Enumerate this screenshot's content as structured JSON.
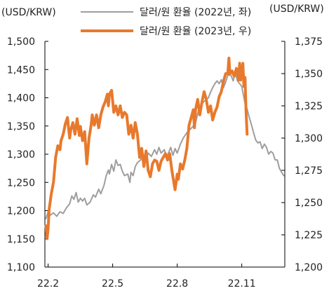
{
  "chart_data": {
    "type": "line",
    "y_unit_left": "(USD/KRW)",
    "y_unit_right": "(USD/KRW)",
    "yticks_left": [
      "1,500",
      "1,450",
      "1,400",
      "1,350",
      "1,300",
      "1,250",
      "1,200",
      "1,150",
      "1,100"
    ],
    "ylim_left": [
      1100,
      1500
    ],
    "yticks_right": [
      "1,375",
      "1,350",
      "1,325",
      "1,300",
      "1,275",
      "1,250",
      "1,225",
      "1,200"
    ],
    "ylim_right": [
      1200,
      1375
    ],
    "xticks": [
      "22.2",
      "22.5",
      "22.8",
      "22.11"
    ],
    "x_tick_months": [
      1,
      4,
      7,
      10
    ],
    "x_range_months": [
      0.85,
      12.0
    ],
    "grid": false,
    "legend_position": "top",
    "series": [
      {
        "name": "달러/원 환율 (2022년, 좌)",
        "axis": "left",
        "color": "#9e9e9e",
        "points": [
          [
            0.9,
            1186
          ],
          [
            1.0,
            1198
          ],
          [
            1.1,
            1192
          ],
          [
            1.25,
            1196
          ],
          [
            1.4,
            1190
          ],
          [
            1.55,
            1198
          ],
          [
            1.7,
            1195
          ],
          [
            1.85,
            1205
          ],
          [
            2.0,
            1212
          ],
          [
            2.1,
            1226
          ],
          [
            2.2,
            1220
          ],
          [
            2.3,
            1232
          ],
          [
            2.4,
            1215
          ],
          [
            2.5,
            1222
          ],
          [
            2.6,
            1217
          ],
          [
            2.7,
            1222
          ],
          [
            2.8,
            1210
          ],
          [
            2.95,
            1215
          ],
          [
            3.1,
            1228
          ],
          [
            3.2,
            1224
          ],
          [
            3.35,
            1238
          ],
          [
            3.45,
            1230
          ],
          [
            3.6,
            1245
          ],
          [
            3.7,
            1262
          ],
          [
            3.8,
            1272
          ],
          [
            3.85,
            1265
          ],
          [
            3.95,
            1282
          ],
          [
            4.05,
            1270
          ],
          [
            4.15,
            1290
          ],
          [
            4.25,
            1280
          ],
          [
            4.35,
            1282
          ],
          [
            4.45,
            1270
          ],
          [
            4.55,
            1262
          ],
          [
            4.7,
            1265
          ],
          [
            4.8,
            1250
          ],
          [
            4.85,
            1268
          ],
          [
            4.95,
            1262
          ],
          [
            5.05,
            1278
          ],
          [
            5.15,
            1285
          ],
          [
            5.3,
            1290
          ],
          [
            5.4,
            1300
          ],
          [
            5.55,
            1292
          ],
          [
            5.65,
            1302
          ],
          [
            5.8,
            1296
          ],
          [
            5.95,
            1308
          ],
          [
            6.05,
            1300
          ],
          [
            6.15,
            1312
          ],
          [
            6.25,
            1302
          ],
          [
            6.4,
            1308
          ],
          [
            6.5,
            1295
          ],
          [
            6.6,
            1303
          ],
          [
            6.7,
            1312
          ],
          [
            6.8,
            1298
          ],
          [
            6.9,
            1310
          ],
          [
            7.0,
            1302
          ],
          [
            7.15,
            1318
          ],
          [
            7.3,
            1330
          ],
          [
            7.45,
            1338
          ],
          [
            7.55,
            1342
          ],
          [
            7.7,
            1348
          ],
          [
            7.85,
            1355
          ],
          [
            8.0,
            1380
          ],
          [
            8.1,
            1385
          ],
          [
            8.2,
            1392
          ],
          [
            8.3,
            1395
          ],
          [
            8.45,
            1400
          ],
          [
            8.55,
            1410
          ],
          [
            8.65,
            1418
          ],
          [
            8.75,
            1425
          ],
          [
            8.85,
            1430
          ],
          [
            8.95,
            1425
          ],
          [
            9.05,
            1432
          ],
          [
            9.15,
            1418
          ],
          [
            9.25,
            1428
          ],
          [
            9.35,
            1440
          ],
          [
            9.5,
            1440
          ],
          [
            9.6,
            1430
          ],
          [
            9.7,
            1445
          ],
          [
            9.8,
            1430
          ],
          [
            9.9,
            1425
          ],
          [
            10.0,
            1420
          ],
          [
            10.05,
            1410
          ],
          [
            10.15,
            1390
          ],
          [
            10.25,
            1380
          ],
          [
            10.35,
            1365
          ],
          [
            10.45,
            1352
          ],
          [
            10.55,
            1338
          ],
          [
            10.65,
            1325
          ],
          [
            10.75,
            1320
          ],
          [
            10.85,
            1322
          ],
          [
            10.95,
            1310
          ],
          [
            11.05,
            1318
          ],
          [
            11.15,
            1312
          ],
          [
            11.25,
            1300
          ],
          [
            11.35,
            1305
          ],
          [
            11.45,
            1302
          ],
          [
            11.55,
            1290
          ],
          [
            11.65,
            1290
          ],
          [
            11.75,
            1275
          ],
          [
            11.85,
            1268
          ],
          [
            11.95,
            1262
          ]
        ]
      },
      {
        "name": "달러/원 환율 (2023년, 우)",
        "axis": "right",
        "color": "#e8792c",
        "points": [
          [
            0.9,
            1232
          ],
          [
            0.95,
            1222
          ],
          [
            1.0,
            1230
          ],
          [
            1.05,
            1245
          ],
          [
            1.15,
            1257
          ],
          [
            1.25,
            1266
          ],
          [
            1.35,
            1285
          ],
          [
            1.45,
            1294
          ],
          [
            1.55,
            1291
          ],
          [
            1.6,
            1298
          ],
          [
            1.7,
            1303
          ],
          [
            1.8,
            1311
          ],
          [
            1.9,
            1316
          ],
          [
            1.95,
            1308
          ],
          [
            2.0,
            1300
          ],
          [
            2.05,
            1306
          ],
          [
            2.15,
            1312
          ],
          [
            2.25,
            1303
          ],
          [
            2.35,
            1315
          ],
          [
            2.45,
            1302
          ],
          [
            2.5,
            1309
          ],
          [
            2.6,
            1298
          ],
          [
            2.7,
            1305
          ],
          [
            2.8,
            1280
          ],
          [
            2.9,
            1300
          ],
          [
            3.0,
            1310
          ],
          [
            3.05,
            1318
          ],
          [
            3.15,
            1310
          ],
          [
            3.25,
            1318
          ],
          [
            3.35,
            1308
          ],
          [
            3.45,
            1318
          ],
          [
            3.55,
            1324
          ],
          [
            3.65,
            1328
          ],
          [
            3.75,
            1334
          ],
          [
            3.8,
            1325
          ],
          [
            3.85,
            1334
          ],
          [
            3.95,
            1337
          ],
          [
            4.05,
            1320
          ],
          [
            4.15,
            1325
          ],
          [
            4.25,
            1318
          ],
          [
            4.35,
            1325
          ],
          [
            4.45,
            1316
          ],
          [
            4.55,
            1320
          ],
          [
            4.65,
            1318
          ],
          [
            4.75,
            1303
          ],
          [
            4.85,
            1310
          ],
          [
            4.95,
            1300
          ],
          [
            5.05,
            1312
          ],
          [
            5.15,
            1303
          ],
          [
            5.25,
            1285
          ],
          [
            5.35,
            1292
          ],
          [
            5.45,
            1278
          ],
          [
            5.55,
            1290
          ],
          [
            5.65,
            1275
          ],
          [
            5.75,
            1270
          ],
          [
            5.85,
            1280
          ],
          [
            5.95,
            1283
          ],
          [
            6.05,
            1282
          ],
          [
            6.15,
            1275
          ],
          [
            6.25,
            1282
          ],
          [
            6.35,
            1285
          ],
          [
            6.45,
            1288
          ],
          [
            6.55,
            1283
          ],
          [
            6.65,
            1288
          ],
          [
            6.75,
            1275
          ],
          [
            6.85,
            1265
          ],
          [
            6.9,
            1260
          ],
          [
            7.0,
            1272
          ],
          [
            7.05,
            1268
          ],
          [
            7.15,
            1280
          ],
          [
            7.25,
            1276
          ],
          [
            7.35,
            1283
          ],
          [
            7.45,
            1292
          ],
          [
            7.55,
            1310
          ],
          [
            7.65,
            1316
          ],
          [
            7.75,
            1322
          ],
          [
            7.8,
            1308
          ],
          [
            7.85,
            1322
          ],
          [
            7.95,
            1330
          ],
          [
            8.05,
            1318
          ],
          [
            8.15,
            1328
          ],
          [
            8.25,
            1336
          ],
          [
            8.35,
            1330
          ],
          [
            8.45,
            1320
          ],
          [
            8.55,
            1325
          ],
          [
            8.65,
            1314
          ],
          [
            8.75,
            1320
          ],
          [
            8.85,
            1324
          ],
          [
            8.95,
            1332
          ],
          [
            9.05,
            1336
          ],
          [
            9.15,
            1344
          ],
          [
            9.25,
            1350
          ],
          [
            9.35,
            1350
          ],
          [
            9.4,
            1362
          ],
          [
            9.45,
            1350
          ],
          [
            9.55,
            1352
          ],
          [
            9.65,
            1348
          ],
          [
            9.75,
            1354
          ],
          [
            9.85,
            1345
          ],
          [
            9.9,
            1358
          ],
          [
            9.95,
            1345
          ],
          [
            10.0,
            1352
          ],
          [
            10.05,
            1358
          ],
          [
            10.1,
            1340
          ],
          [
            10.15,
            1347
          ],
          [
            10.2,
            1320
          ],
          [
            10.25,
            1303
          ]
        ]
      }
    ]
  }
}
